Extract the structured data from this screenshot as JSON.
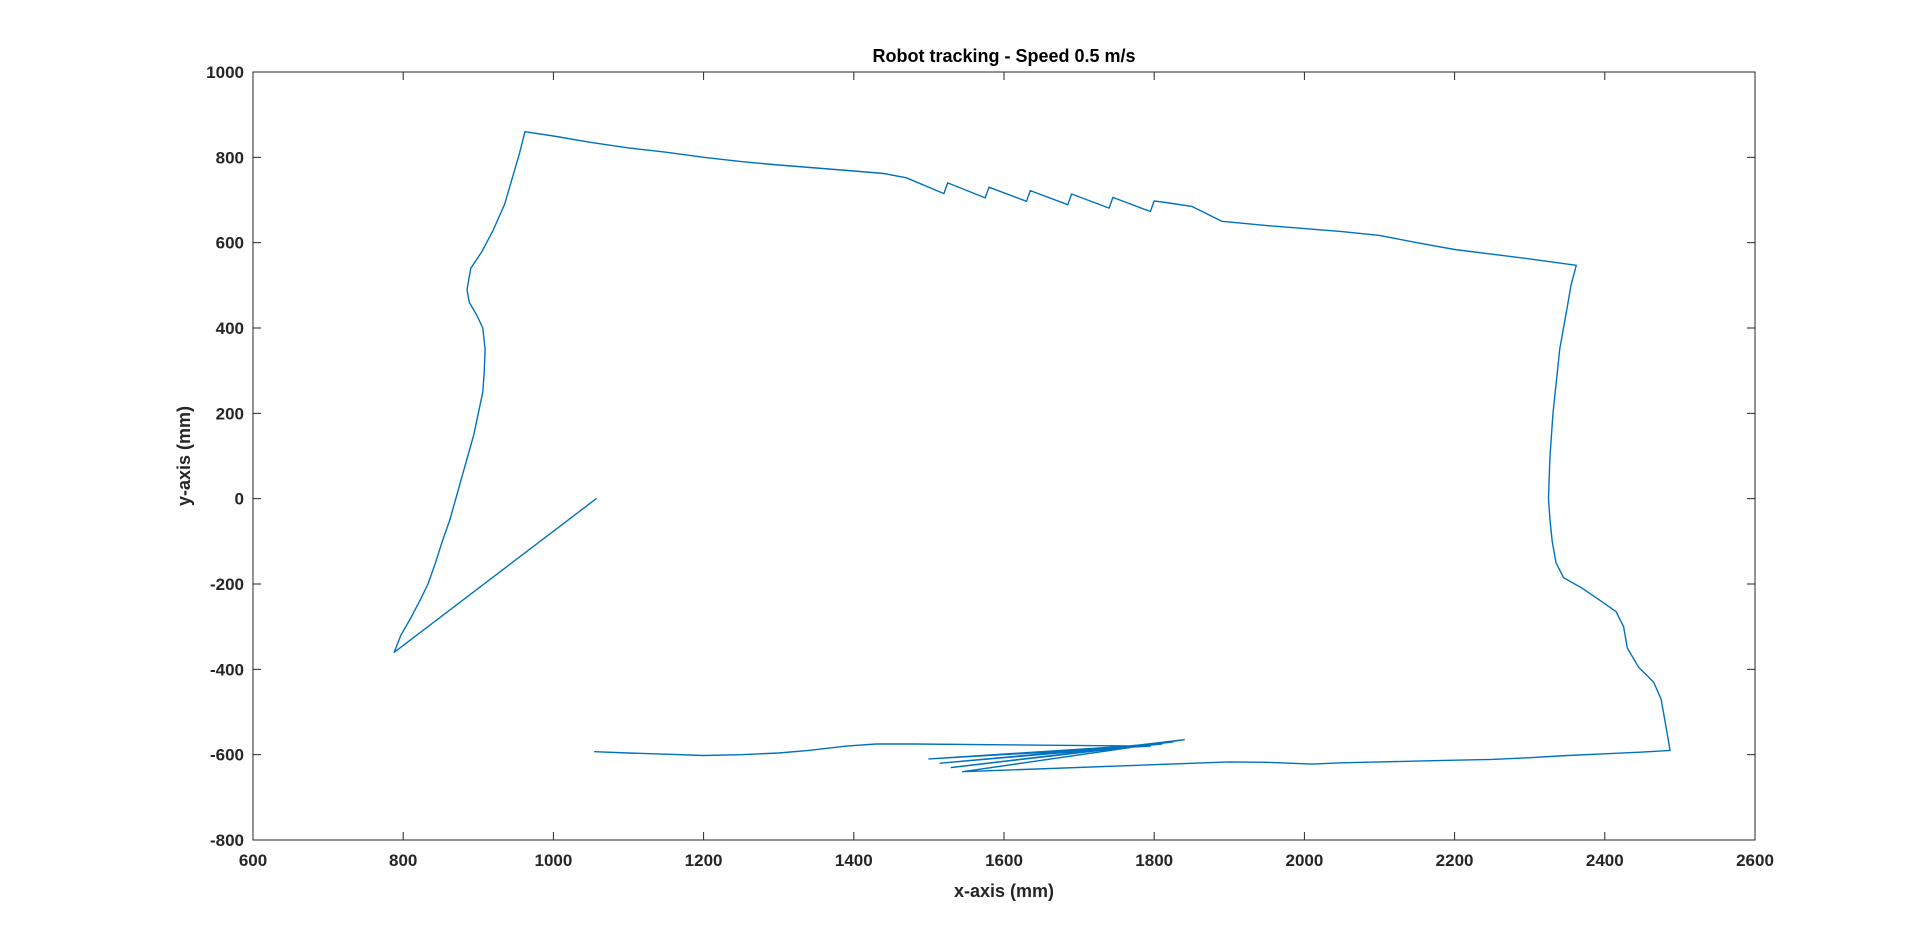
{
  "chart_data": {
    "type": "line",
    "title": "Robot tracking - Speed 0.5 m/s",
    "xlabel": "x-axis (mm)",
    "ylabel": "y-axis (mm)",
    "xlim": [
      600,
      2600
    ],
    "ylim": [
      -800,
      1000
    ],
    "xticks": [
      600,
      800,
      1000,
      1200,
      1400,
      1600,
      1800,
      2000,
      2200,
      2400,
      2600
    ],
    "yticks": [
      -800,
      -600,
      -400,
      -200,
      0,
      200,
      400,
      600,
      800,
      1000
    ],
    "grid": false,
    "legend": "none",
    "colors": {
      "series": "#0072BD",
      "axes": "#262626",
      "background": "#ffffff"
    },
    "series": [
      {
        "path": [
          [
            1057,
            0
          ],
          [
            788,
            -360
          ],
          [
            797,
            -320
          ],
          [
            810,
            -280
          ],
          [
            822,
            -240
          ],
          [
            833,
            -200
          ],
          [
            843,
            -150
          ],
          [
            852,
            -100
          ],
          [
            862,
            -50
          ],
          [
            870,
            0
          ],
          [
            878,
            50
          ],
          [
            886,
            100
          ],
          [
            894,
            150
          ],
          [
            900,
            200
          ],
          [
            906,
            250
          ],
          [
            908,
            300
          ],
          [
            909,
            350
          ],
          [
            906,
            400
          ],
          [
            898,
            430
          ],
          [
            888,
            460
          ],
          [
            885,
            490
          ],
          [
            890,
            540
          ],
          [
            905,
            580
          ],
          [
            920,
            630
          ],
          [
            935,
            690
          ],
          [
            945,
            750
          ],
          [
            955,
            810
          ],
          [
            962,
            860
          ],
          [
            1000,
            850
          ],
          [
            1050,
            835
          ],
          [
            1100,
            822
          ],
          [
            1150,
            812
          ],
          [
            1200,
            800
          ],
          [
            1250,
            790
          ],
          [
            1300,
            782
          ],
          [
            1350,
            775
          ],
          [
            1400,
            768
          ],
          [
            1440,
            762
          ],
          [
            1470,
            752
          ],
          [
            1520,
            715
          ],
          [
            1525,
            740
          ],
          [
            1575,
            705
          ],
          [
            1580,
            730
          ],
          [
            1630,
            697
          ],
          [
            1635,
            722
          ],
          [
            1685,
            689
          ],
          [
            1690,
            714
          ],
          [
            1740,
            681
          ],
          [
            1745,
            706
          ],
          [
            1795,
            673
          ],
          [
            1800,
            698
          ],
          [
            1820,
            693
          ],
          [
            1850,
            685
          ],
          [
            1890,
            650
          ],
          [
            1950,
            640
          ],
          [
            2000,
            633
          ],
          [
            2050,
            626
          ],
          [
            2100,
            617
          ],
          [
            2150,
            600
          ],
          [
            2200,
            584
          ],
          [
            2250,
            573
          ],
          [
            2300,
            562
          ],
          [
            2362,
            547
          ],
          [
            2355,
            500
          ],
          [
            2350,
            450
          ],
          [
            2345,
            400
          ],
          [
            2340,
            350
          ],
          [
            2337,
            300
          ],
          [
            2334,
            250
          ],
          [
            2331,
            200
          ],
          [
            2329,
            150
          ],
          [
            2327,
            100
          ],
          [
            2326,
            50
          ],
          [
            2325,
            0
          ],
          [
            2327,
            -50
          ],
          [
            2330,
            -100
          ],
          [
            2335,
            -150
          ],
          [
            2345,
            -185
          ],
          [
            2370,
            -210
          ],
          [
            2395,
            -240
          ],
          [
            2415,
            -265
          ],
          [
            2425,
            -300
          ],
          [
            2430,
            -350
          ],
          [
            2445,
            -395
          ],
          [
            2465,
            -430
          ],
          [
            2475,
            -470
          ],
          [
            2480,
            -520
          ],
          [
            2487,
            -590
          ],
          [
            2450,
            -594
          ],
          [
            2400,
            -598
          ],
          [
            2350,
            -602
          ],
          [
            2300,
            -607
          ],
          [
            2250,
            -611
          ],
          [
            2200,
            -613
          ],
          [
            2150,
            -615
          ],
          [
            2100,
            -617
          ],
          [
            2050,
            -619
          ],
          [
            2010,
            -622
          ],
          [
            1950,
            -618
          ],
          [
            1900,
            -617
          ],
          [
            1545,
            -640
          ],
          [
            1840,
            -565
          ],
          [
            1530,
            -630
          ],
          [
            1825,
            -570
          ],
          [
            1515,
            -620
          ],
          [
            1810,
            -575
          ],
          [
            1500,
            -610
          ],
          [
            1795,
            -580
          ],
          [
            1480,
            -575
          ],
          [
            1430,
            -575
          ],
          [
            1390,
            -580
          ],
          [
            1340,
            -590
          ],
          [
            1300,
            -596
          ],
          [
            1250,
            -600
          ],
          [
            1200,
            -602
          ],
          [
            1150,
            -599
          ],
          [
            1100,
            -596
          ],
          [
            1055,
            -593
          ]
        ]
      }
    ]
  }
}
